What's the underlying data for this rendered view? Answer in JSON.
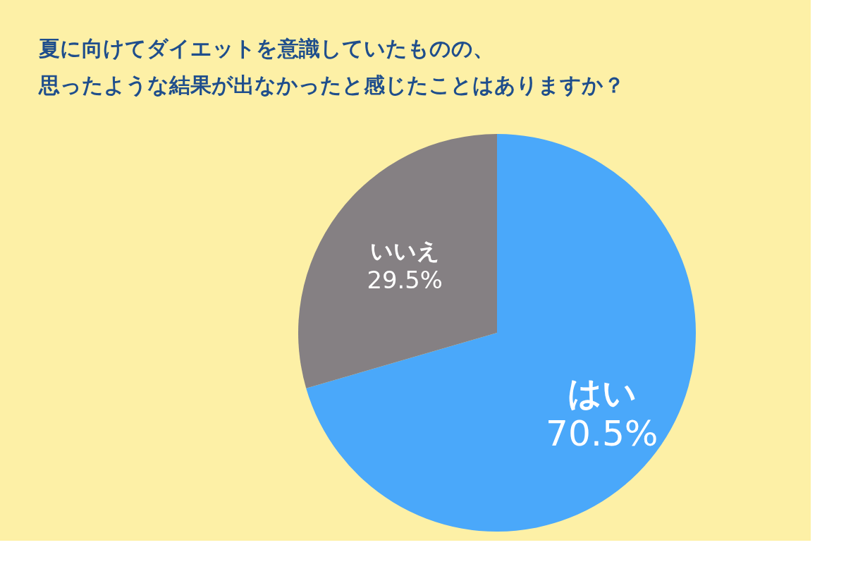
{
  "chart_data": {
    "type": "pie",
    "title": "夏に向けてダイエットを意識していたものの、思ったような結果が出なかったと感じたことはありますか？",
    "categories": [
      "はい",
      "いいえ"
    ],
    "values": [
      70.5,
      29.5
    ],
    "colors": [
      "#4aa8fa",
      "#858083"
    ],
    "value_labels": [
      "70.5%",
      "29.5%"
    ],
    "legend": false
  }
}
